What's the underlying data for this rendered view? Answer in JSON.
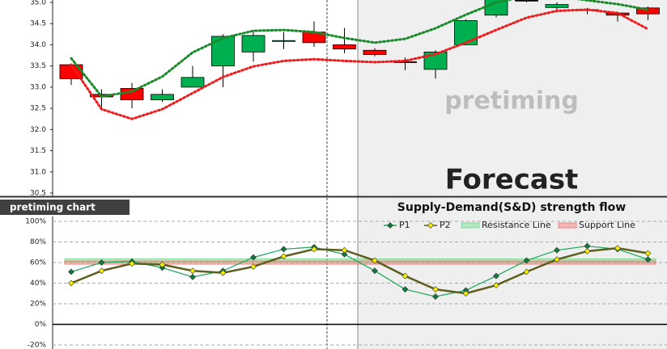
{
  "chart_data": [
    {
      "type": "candlestick",
      "annotations": [
        "pretiming",
        "Forecast"
      ],
      "ylim": [
        30.5,
        35.0
      ],
      "yticks": [
        {
          "value": 30.5,
          "label": "30.5"
        },
        {
          "value": 31,
          "label": "31.0"
        },
        {
          "value": 31.5,
          "label": "31.5"
        },
        {
          "value": 32,
          "label": "32.0"
        },
        {
          "value": 32.5,
          "label": "32.5"
        },
        {
          "value": 33,
          "label": "33.0"
        },
        {
          "value": 33.5,
          "label": "33.5"
        },
        {
          "value": 34,
          "label": "34.0"
        },
        {
          "value": 34.5,
          "label": "34.5"
        },
        {
          "value": 35,
          "label": "35.0"
        }
      ],
      "up_color": "#00b050",
      "down_color": "#ff0000",
      "open": [
        33.53,
        32.83,
        32.97,
        32.7,
        33.0,
        33.5,
        33.83,
        34.08,
        34.3,
        34.0,
        33.87,
        33.6,
        33.42,
        34.0,
        34.7,
        35.05,
        34.88,
        34.83,
        34.75,
        34.87
      ],
      "high": [
        33.55,
        32.95,
        33.1,
        32.95,
        33.5,
        34.25,
        34.3,
        34.3,
        34.55,
        34.4,
        33.92,
        33.7,
        33.87,
        34.6,
        35.2,
        35.2,
        35.0,
        34.87,
        34.77,
        34.9
      ],
      "low": [
        33.05,
        32.45,
        32.5,
        32.65,
        33.0,
        33.0,
        33.6,
        33.9,
        33.95,
        33.8,
        33.73,
        33.4,
        33.2,
        34.0,
        34.65,
        35.0,
        34.8,
        34.72,
        34.55,
        34.58
      ],
      "close": [
        33.2,
        32.77,
        32.7,
        32.83,
        33.23,
        34.2,
        34.22,
        34.1,
        34.05,
        33.9,
        33.77,
        33.58,
        33.83,
        34.57,
        35.1,
        35.05,
        34.95,
        34.83,
        34.7,
        34.73
      ],
      "lines": [
        {
          "color": "#1a8a2a",
          "values": [
            33.68,
            32.78,
            32.9,
            33.25,
            33.82,
            34.16,
            34.33,
            34.35,
            34.3,
            34.16,
            34.05,
            34.14,
            34.39,
            34.71,
            35.0,
            35.15,
            35.15,
            35.05,
            34.96,
            34.83
          ]
        },
        {
          "color": "#ee1c1c",
          "values": [
            33.53,
            32.48,
            32.25,
            32.48,
            32.86,
            33.24,
            33.49,
            33.62,
            33.66,
            33.62,
            33.59,
            33.62,
            33.78,
            34.05,
            34.35,
            34.64,
            34.8,
            34.83,
            34.75,
            34.37
          ]
        }
      ]
    },
    {
      "type": "line",
      "label": "pretiming chart",
      "title": "Supply-Demand(S&D) strength flow",
      "ylim": [
        -20,
        100
      ],
      "yticks": [
        {
          "value": -20,
          "label": "-20%"
        },
        {
          "value": 0,
          "label": "0%"
        },
        {
          "value": 20,
          "label": "20%"
        },
        {
          "value": 40,
          "label": "40%"
        },
        {
          "value": 60,
          "label": "60%"
        },
        {
          "value": 80,
          "label": "80%"
        },
        {
          "value": 100,
          "label": "100%"
        }
      ],
      "grid": true,
      "series": [
        {
          "name": "P1",
          "color": "#1aa85a",
          "marker_color": "#0f7a3a",
          "values": [
            51,
            60,
            61,
            55,
            46,
            52,
            65,
            73,
            75,
            68,
            52,
            34,
            27,
            33,
            47,
            62,
            72,
            76,
            73,
            63
          ]
        },
        {
          "name": "P2",
          "color": "#5e5e1e",
          "marker_color": "#f5f000",
          "values": [
            40,
            52,
            59,
            58,
            52,
            50,
            56,
            66,
            73,
            72,
            62,
            47,
            34,
            30,
            38,
            51,
            63,
            71,
            74,
            69
          ]
        }
      ],
      "reference_lines": [
        {
          "name": "Resistance Line",
          "value": 62,
          "color": "#7ddc9a"
        },
        {
          "name": "Support Line",
          "value": 60,
          "color": "#f08080"
        }
      ]
    }
  ]
}
